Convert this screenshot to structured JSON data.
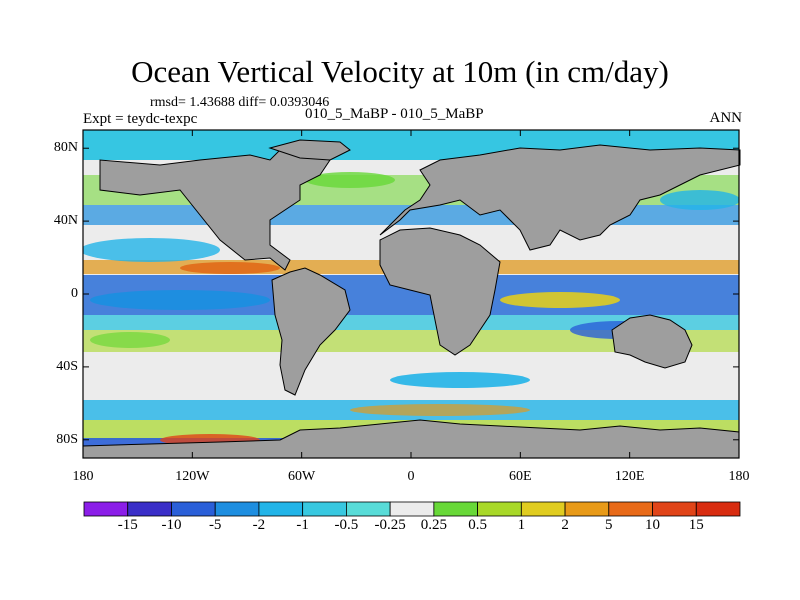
{
  "title": "Ocean Vertical Velocity at 10m (in cm/day)",
  "stats": "rmsd= 1.43688  diff= 0.0393046",
  "experiment": "Expt = teydc-texpc",
  "case": "010_5_MaBP - 010_5_MaBP",
  "season": "ANN",
  "x_ticks": [
    "180",
    "120W",
    "60W",
    "0",
    "60E",
    "120E",
    "180"
  ],
  "y_ticks": [
    "80N",
    "40N",
    "0",
    "40S",
    "80S"
  ],
  "colorbar": {
    "labels": [
      "-15",
      "-10",
      "-5",
      "-2",
      "-1",
      "-0.5",
      "-0.25",
      "0.25",
      "0.5",
      "1",
      "2",
      "5",
      "10",
      "15"
    ],
    "colors": [
      "#8b1ee8",
      "#3a2ec8",
      "#2a5fd8",
      "#1e8ee0",
      "#22b4e8",
      "#38c8e0",
      "#58dcd8",
      "#ececec",
      "#68d838",
      "#a8d828",
      "#e0cc20",
      "#e89a18",
      "#e86a18",
      "#e04418",
      "#d82c10"
    ]
  },
  "land_color": "#9e9e9e"
}
